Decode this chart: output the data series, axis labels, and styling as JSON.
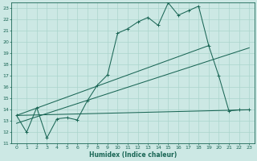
{
  "xlabel": "Humidex (Indice chaleur)",
  "bg_color": "#cce8e4",
  "grid_color": "#aad4cc",
  "line_color": "#1a6655",
  "xlim": [
    -0.5,
    23.5
  ],
  "ylim": [
    11,
    23.5
  ],
  "xtick_labels": [
    "0",
    "1",
    "2",
    "3",
    "4",
    "5",
    "6",
    "7",
    "8",
    "9",
    "10",
    "11",
    "12",
    "13",
    "14",
    "15",
    "16",
    "17",
    "18",
    "19",
    "20",
    "21",
    "22",
    "23"
  ],
  "ytick_labels": [
    "11",
    "12",
    "13",
    "14",
    "15",
    "16",
    "17",
    "18",
    "19",
    "20",
    "21",
    "22",
    "23"
  ],
  "line1_x": [
    0,
    1,
    2,
    3,
    4,
    5,
    6,
    7,
    8,
    9,
    10,
    11,
    12,
    13,
    14,
    15,
    16,
    17,
    18,
    19,
    20,
    21,
    22,
    23
  ],
  "line1_y": [
    13.5,
    12.0,
    14.2,
    11.5,
    13.2,
    13.3,
    13.1,
    14.8,
    16.2,
    17.1,
    20.8,
    21.2,
    21.8,
    22.2,
    21.5,
    23.5,
    22.4,
    22.8,
    23.2,
    19.7,
    17.0,
    13.9,
    14.0,
    14.0
  ],
  "line2_x": [
    0,
    23
  ],
  "line2_y": [
    13.5,
    14.0
  ],
  "line3_x": [
    0,
    23
  ],
  "line3_y": [
    12.8,
    19.5
  ],
  "line4_x": [
    0,
    19
  ],
  "line4_y": [
    13.5,
    19.7
  ]
}
